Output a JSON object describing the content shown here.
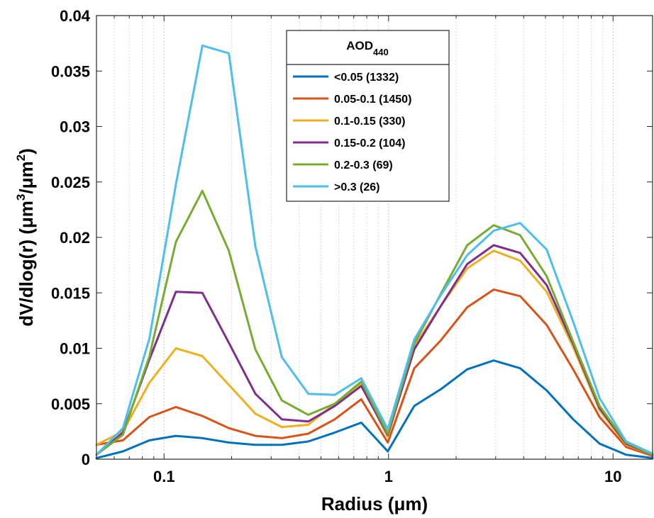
{
  "chart_data": {
    "type": "line",
    "xlabel": "Radius (μm)",
    "ylabel": {
      "base": "dV/dlog(r) (μm",
      "sup1": "3",
      "mid": "/μm",
      "sup2": "2",
      "end": ")"
    },
    "xscale": "log",
    "xlim": [
      0.05,
      15
    ],
    "ylim": [
      0,
      0.04
    ],
    "grid": "x-log-dotted",
    "x_ticks": [
      0.1,
      1,
      10
    ],
    "x_tick_labels": [
      "0.1",
      "1",
      "10"
    ],
    "y_ticks": [
      0,
      0.005,
      0.01,
      0.015,
      0.02,
      0.025,
      0.03,
      0.035,
      0.04
    ],
    "y_tick_labels": [
      "0",
      "0.005",
      "0.01",
      "0.015",
      "0.02",
      "0.025",
      "0.03",
      "0.035",
      "0.04"
    ],
    "legend": {
      "title_base": "AOD",
      "title_sub": "440",
      "placement": "top-center"
    },
    "x": [
      0.05,
      0.0656,
      0.0861,
      0.1129,
      0.1482,
      0.1944,
      0.2551,
      0.3347,
      0.4391,
      0.5762,
      0.756,
      0.992,
      1.3015,
      1.7077,
      2.2407,
      2.94,
      3.8575,
      5.0615,
      6.6413,
      8.7141,
      11.4338,
      15.0
    ],
    "series": [
      {
        "name": "<0.05 (1332)",
        "color": "#0072BD",
        "values": [
          0.0001,
          0.0007,
          0.0017,
          0.0021,
          0.0019,
          0.0015,
          0.0013,
          0.0013,
          0.0016,
          0.0024,
          0.0033,
          0.0007,
          0.0048,
          0.0063,
          0.0081,
          0.0089,
          0.0082,
          0.0062,
          0.0036,
          0.0014,
          0.0004,
          0.0001
        ]
      },
      {
        "name": "0.05-0.1 (1450)",
        "color": "#D95319",
        "values": [
          0.0013,
          0.0017,
          0.0038,
          0.0047,
          0.0039,
          0.0028,
          0.0021,
          0.0019,
          0.0023,
          0.0036,
          0.0054,
          0.0015,
          0.0082,
          0.0107,
          0.0137,
          0.0153,
          0.0147,
          0.0121,
          0.0081,
          0.0038,
          0.0011,
          0.0003
        ]
      },
      {
        "name": "0.1-0.15 (330)",
        "color": "#EDB120",
        "values": [
          0.0013,
          0.0025,
          0.0069,
          0.01,
          0.0093,
          0.0067,
          0.0041,
          0.0029,
          0.0031,
          0.005,
          0.0068,
          0.002,
          0.0102,
          0.0138,
          0.0172,
          0.0188,
          0.0179,
          0.0151,
          0.0101,
          0.0044,
          0.0013,
          0.0004
        ]
      },
      {
        "name": "0.15-0.2 (104)",
        "color": "#7E2F8E",
        "values": [
          0.0004,
          0.0024,
          0.009,
          0.0151,
          0.015,
          0.0105,
          0.0059,
          0.0036,
          0.0034,
          0.0048,
          0.0066,
          0.0022,
          0.0099,
          0.0138,
          0.0176,
          0.0193,
          0.0186,
          0.0157,
          0.0104,
          0.0046,
          0.0014,
          0.0004
        ]
      },
      {
        "name": "0.2-0.3 (69)",
        "color": "#77AC30",
        "values": [
          0.0004,
          0.0022,
          0.0093,
          0.0196,
          0.0242,
          0.0188,
          0.0099,
          0.0053,
          0.004,
          0.005,
          0.007,
          0.0023,
          0.0104,
          0.0149,
          0.0193,
          0.0211,
          0.0202,
          0.0165,
          0.0106,
          0.0048,
          0.0015,
          0.0004
        ]
      },
      {
        "name": ">0.3 (26)",
        "color": "#4DBEEE",
        "values": [
          0.0004,
          0.0028,
          0.0109,
          0.0248,
          0.0373,
          0.0366,
          0.0192,
          0.0092,
          0.0059,
          0.0058,
          0.0073,
          0.0027,
          0.0108,
          0.0148,
          0.0184,
          0.0206,
          0.0213,
          0.0189,
          0.0124,
          0.0055,
          0.0016,
          0.0005
        ]
      }
    ]
  }
}
